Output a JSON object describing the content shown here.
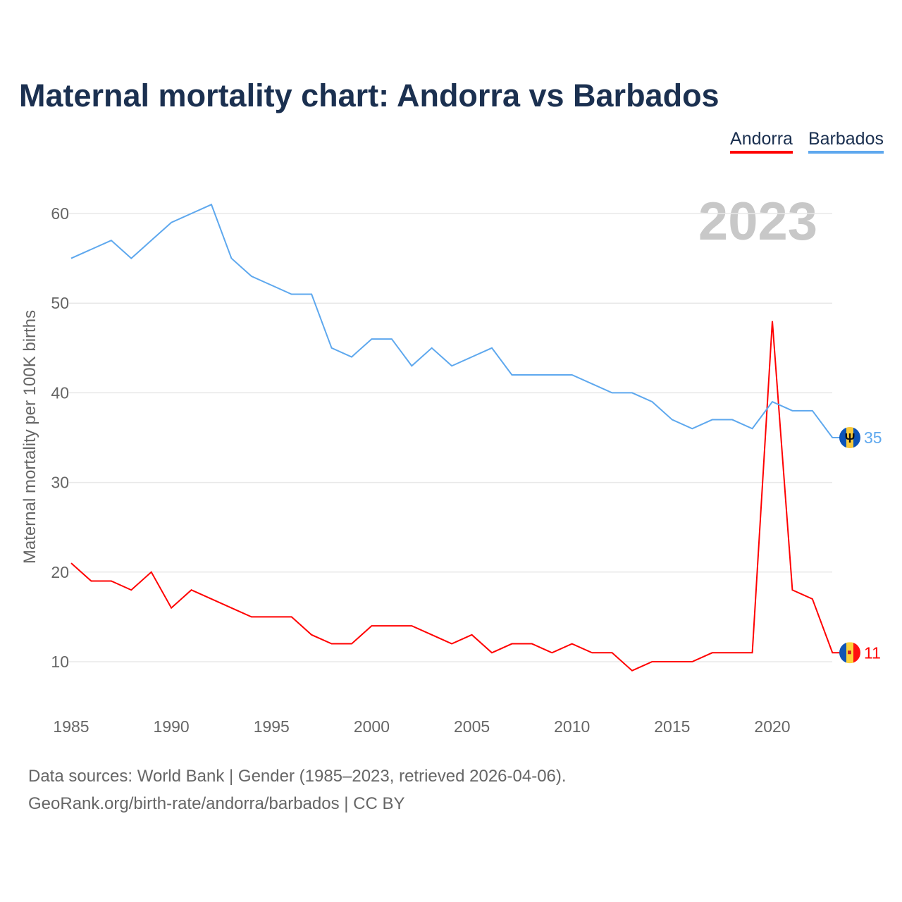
{
  "title": "Maternal mortality chart: Andorra vs Barbados",
  "year_watermark": "2023",
  "footer": {
    "line1": "Data sources: World Bank | Gender (1985–2023, retrieved 2026-04-06).",
    "line2": "GeoRank.org/birth-rate/andorra/barbados | CC BY"
  },
  "chart_data": {
    "type": "line",
    "title": "Maternal mortality chart: Andorra vs Barbados",
    "xlabel": "",
    "ylabel": "Maternal mortality per 100K births",
    "xlim": [
      1985,
      2023
    ],
    "ylim": [
      5,
      65
    ],
    "yticks": [
      10,
      20,
      30,
      40,
      50,
      60
    ],
    "xticks": [
      1985,
      1990,
      1995,
      2000,
      2005,
      2010,
      2015,
      2020
    ],
    "grid": true,
    "legend_position": "top-right",
    "x": [
      1985,
      1986,
      1987,
      1988,
      1989,
      1990,
      1991,
      1992,
      1993,
      1994,
      1995,
      1996,
      1997,
      1998,
      1999,
      2000,
      2001,
      2002,
      2003,
      2004,
      2005,
      2006,
      2007,
      2008,
      2009,
      2010,
      2011,
      2012,
      2013,
      2014,
      2015,
      2016,
      2017,
      2018,
      2019,
      2020,
      2021,
      2022,
      2023
    ],
    "series": [
      {
        "name": "Andorra",
        "color": "#ff0000",
        "end_label": "11",
        "values": [
          21,
          19,
          19,
          18,
          20,
          16,
          18,
          17,
          16,
          15,
          15,
          15,
          13,
          12,
          12,
          14,
          14,
          14,
          13,
          12,
          13,
          11,
          12,
          12,
          11,
          12,
          11,
          11,
          9,
          10,
          10,
          10,
          11,
          11,
          11,
          48,
          18,
          17,
          11
        ]
      },
      {
        "name": "Barbados",
        "color": "#5ea8ee",
        "end_label": "35",
        "values": [
          55,
          56,
          57,
          55,
          57,
          59,
          60,
          61,
          55,
          53,
          52,
          51,
          51,
          45,
          44,
          46,
          46,
          43,
          45,
          43,
          44,
          45,
          42,
          42,
          42,
          42,
          41,
          40,
          40,
          39,
          37,
          36,
          37,
          37,
          36,
          39,
          38,
          38,
          35
        ]
      }
    ]
  }
}
